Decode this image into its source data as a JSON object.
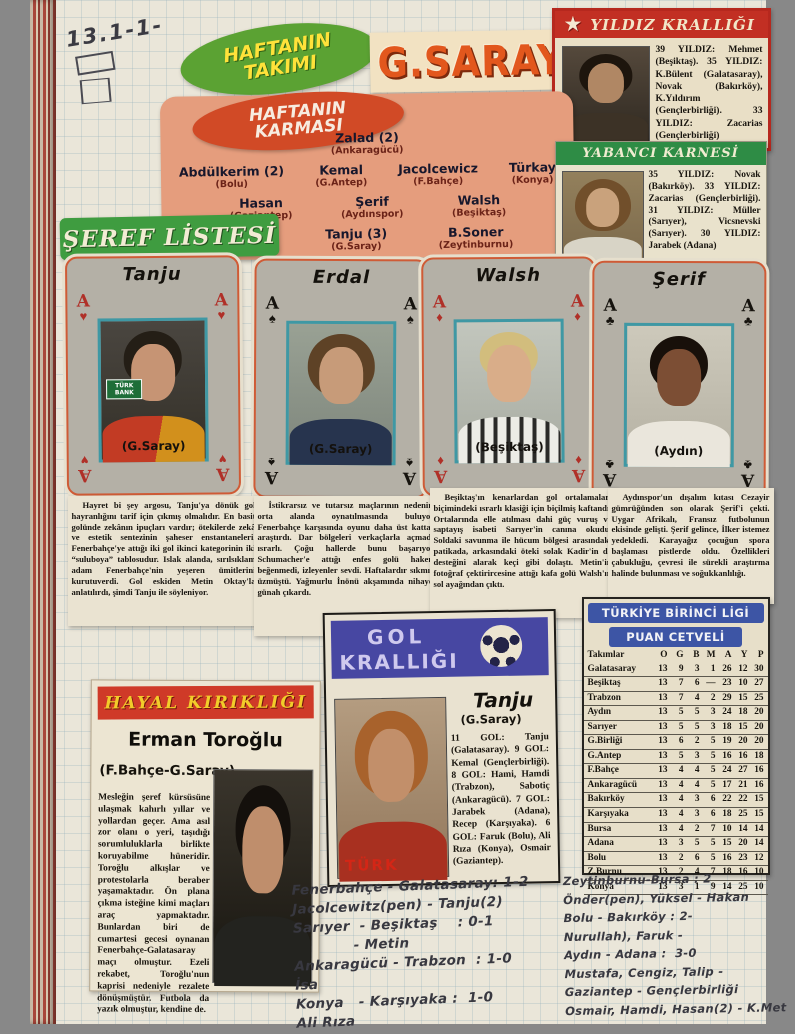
{
  "marks": {
    "note": "13.1-1-"
  },
  "headers": {
    "haftanin_takimi": "HAFTANIN TAKIMI",
    "gsaray": "G.SARAY",
    "haftanin_karmasi": "HAFTANIN KARMASI",
    "seref_listesi": "ŞEREF LİSTESİ"
  },
  "yildiz": {
    "title": "YILDIZ KRALLIĞI",
    "star_icon": "★",
    "body": "39 YILDIZ: Mehmet (Beşiktaş). 35 YILDIZ: K.Bülent (Galatasaray), Novak (Bakırköy), K.Yıldırım (Gençlerbirliği). 33 YILDIZ: Zacarias (Gençlerbirliği)"
  },
  "yabanci": {
    "title": "YABANCI KARNESİ",
    "body": "35 YILDIZ: Novak (Bakırköy). 33 YILDIZ: Zacarias (Gençlerbirliği). 31 YILDIZ: Müller (Sarıyer), Vicsnevski (Sarıyer). 30 YILDIZ: Jarabek (Adana)"
  },
  "lineup": {
    "rows": [
      [
        {
          "name": "Zalad (2)",
          "club": "(Ankaragücü)"
        }
      ],
      [
        {
          "name": "Abdülkerim (2)",
          "club": "(Bolu)"
        },
        {
          "name": "Kemal",
          "club": "(G.Antep)"
        },
        {
          "name": "Jacolcewicz",
          "club": "(F.Bahçe)"
        },
        {
          "name": "Türkay",
          "club": "(Konya)"
        }
      ],
      [
        {
          "name": "Hasan",
          "club": "(Gaziantep)"
        },
        {
          "name": "Şerif",
          "club": "(Aydınspor)"
        },
        {
          "name": "Walsh",
          "club": "(Beşiktaş)"
        }
      ],
      [
        {
          "name": "Erdal",
          "club": "(G.Saray)"
        },
        {
          "name": "Tanju (3)",
          "club": "(G.Saray)"
        },
        {
          "name": "B.Soner",
          "club": "(Zeytinburnu)"
        }
      ]
    ]
  },
  "cards": [
    {
      "name": "Tanju",
      "club": "(G.Saray)",
      "rank": "A",
      "suit": "♥",
      "color": "red",
      "photo_text": "TÜRK BANK"
    },
    {
      "name": "Erdal",
      "club": "(G.Saray)",
      "rank": "A",
      "suit": "♠",
      "color": "black"
    },
    {
      "name": "Walsh",
      "club": "(Beşiktaş)",
      "rank": "A",
      "suit": "♦",
      "color": "red"
    },
    {
      "name": "Şerif",
      "club": "(Aydın)",
      "rank": "A",
      "suit": "♣",
      "color": "black"
    }
  ],
  "articles": {
    "col1": "Hayret bi şey argosu, Tanju'ya dönük gol hayranlığını tarif için çıkmış olmalıdır. En basit golünde zekânın ipuçları vardır; ötekilerde zekâ ve estetik sentezinin şaheser enstantaneleri. Fenerbahçe'ye attığı iki gol ikinci kategorinin iki “suluboya” tablosudur. Islak alanda, sırılsıklam adam Fenerbahçe'nin yeşeren ümitlerini kurutuverdi. Gol eskiden Metin Oktay'la anlatılırdı, şimdi Tanju ile söyleniyor.",
    "col2": "İstikrarsız ve tutarsız maçlarının nedenini orta alanda oynatılmasında buluyor. Fenerbahçe karşısında oyunu daha üst kattan araştırdı. Dar bölgeleri verkaçlarla açmada ısrarlı. Çoğu hallerde bunu başarıyor. Schumacher'e attığı enfes golü hakem beğenmedi, izleyenler sevdi. Haftalardır sıkmış, üzmüştü. Yağmurlu İnönü akşamında nihayet günah çıkardı.",
    "col3": "Beşiktaş'ın kenarlardan gol ortalamaları biçimindeki ısrarlı klasiği için biçilmiş kaftandı. Ortalarında elle atılması dahi güç vuruş ve saptayış isabeti Sarıyer'in canına okudu. Soldaki savunma ile hücum bölgesi arasındaki patikada, arkasındaki öteki solak Kadir'in de desteğini alarak keçi gibi dolaştı. Metin'in fotoğraf çektirircesine attığı kafa golü Walsh'ın sol ayağından çıktı.",
    "col4": "Aydınspor'un dışalım kıtası Cezayir gümrüğünden son olarak Şerif'i çekti. Uygar Afrikalı, Fransız futbolunun ekisinde gelişti. Şerif gelince, İlker istemez yedekledi. Karayağız çocuğun spora başlaması pistlerde oldu. Özellikleri çabukluğu, çevresi ile sürekli araştırma halinde bulunması ve soğukkanlılığı."
  },
  "standings": {
    "title1": "TÜRKİYE BİRİNCİ LİGİ",
    "title2": "PUAN CETVELİ",
    "headers": [
      "Takımlar",
      "O",
      "G",
      "B",
      "M",
      "A",
      "Y",
      "P"
    ],
    "rows": [
      [
        "Galatasaray",
        13,
        9,
        3,
        1,
        26,
        12,
        30
      ],
      [
        "Beşiktaş",
        13,
        7,
        6,
        "—",
        23,
        10,
        27
      ],
      [
        "Trabzon",
        13,
        7,
        4,
        2,
        29,
        15,
        25
      ],
      [
        "Aydın",
        13,
        5,
        5,
        3,
        24,
        18,
        20
      ],
      [
        "Sarıyer",
        13,
        5,
        5,
        3,
        18,
        15,
        20
      ],
      [
        "G.Birliği",
        13,
        6,
        2,
        5,
        19,
        20,
        20
      ],
      [
        "G.Antep",
        13,
        5,
        3,
        5,
        16,
        16,
        18
      ],
      [
        "F.Bahçe",
        13,
        4,
        4,
        5,
        24,
        27,
        16
      ],
      [
        "Ankaragücü",
        13,
        4,
        4,
        5,
        17,
        21,
        16
      ],
      [
        "Bakırköy",
        13,
        4,
        3,
        6,
        22,
        22,
        15
      ],
      [
        "Karşıyaka",
        13,
        4,
        3,
        6,
        18,
        25,
        15
      ],
      [
        "Bursa",
        13,
        4,
        2,
        7,
        10,
        14,
        14
      ],
      [
        "Adana",
        13,
        3,
        5,
        5,
        15,
        20,
        14
      ],
      [
        "Bolu",
        13,
        2,
        6,
        5,
        16,
        23,
        12
      ],
      [
        "Z.Burnu",
        13,
        2,
        4,
        7,
        18,
        16,
        10
      ],
      [
        "Konya",
        13,
        3,
        1,
        9,
        14,
        25,
        10
      ]
    ]
  },
  "gol": {
    "title1": "GOL",
    "title2": "KRALLIĞI",
    "player": "Tanju",
    "club": "(G.Saray)",
    "photo_text": "TÜRK",
    "body": "11 GOL: Tanju (Galatasaray). 9 GOL: Kemal (Gençlerbirliği). 8 GOL: Hami, Hamdi (Trabzon), Sabotiç (Ankaragücü). 7 GOL: Jarabek (Adana), Recep (Karşıyaka). 6 GOL: Faruk (Bolu), Ali Rıza (Konya), Osmair (Gaziantep)."
  },
  "hayal": {
    "title": "HAYAL KIRIKLIĞI",
    "headline": "Erman Toroğlu",
    "subtitle": "(F.Bahçe-G.Saray)",
    "body": "Mesleğin şeref kürsüsüne ulaşmak kahırlı yıllar ve yollardan geçer. Ama asıl zor olanı o yeri, taşıdığı sorumluluklarla birlikte koruyabilme hüneridir. Toroğlu alkışlar ve protestolarla beraber yaşamaktadır. Ön plana çıkma isteğine kimi maçları araç yapmaktadır. Bunlardan biri de cumartesi gecesi oynanan Fenerbahçe-Galatasaray maçı olmuştur. Ezeli rekabet, Toroğlu'nun kaprisi nedeniyle rezalete dönüşmüştür. Futbola da yazık olmuştur, kendine de."
  },
  "handwriting": {
    "left": [
      "Fenerbahçe - Galatasaray: 1-2",
      "Jacolcewitz(pen) - Tanju(2)",
      "Sarıyer  - Beşiktaş    : 0-1",
      "            - Metin",
      "Ankaragücü - Trabzon  : 1-0",
      "İsa",
      "Konya   - Karşıyaka :  1-0",
      "Ali Rıza"
    ],
    "right": [
      "Zeytinburnu-Bursa : 2",
      "Önder(pen), Yüksel - Hakan",
      "Bolu - Bakırköy : 2-",
      "Nurullah), Faruk -",
      "Aydın - Adana :  3-0",
      "Mustafa, Cengiz, Talip -",
      "Gaziantep - Gençlerbirliği",
      "Osmair, Hamdi, Hasan(2) - K.Met"
    ]
  }
}
